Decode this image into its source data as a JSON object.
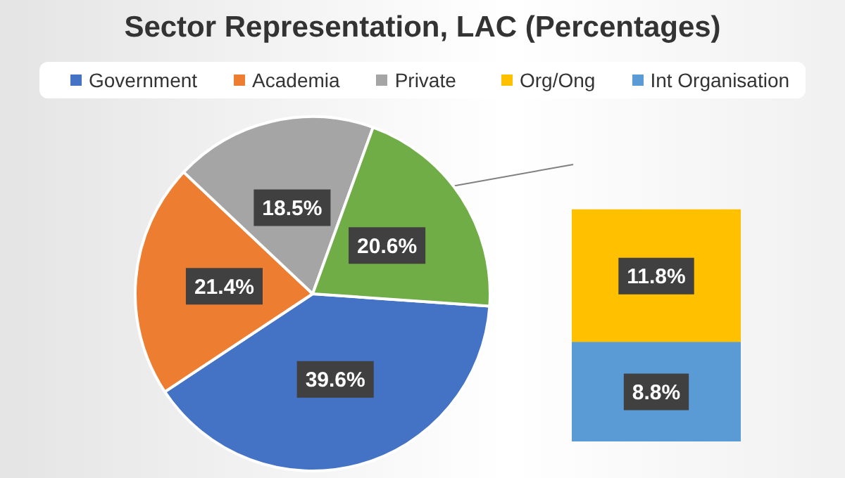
{
  "chart_data": [
    {
      "type": "pie",
      "title": "Sector Representation, LAC (Percentages)",
      "categories": [
        "Government",
        "Academia",
        "Private",
        null
      ],
      "values": [
        39.6,
        21.4,
        18.5,
        20.6
      ],
      "colors": [
        "#4472c4",
        "#ed7d31",
        "#a5a5a5",
        "#70ad47"
      ],
      "value_labels": [
        "39.6%",
        "21.4%",
        "18.5%",
        "20.6%"
      ],
      "legend": "top"
    },
    {
      "type": "bar",
      "stacked": true,
      "categories": [
        null
      ],
      "tick_labels": false,
      "legend": "top left",
      "series": [
        {
          "name": "Int Organisation",
          "color": "#5b9bd5",
          "values": [
            8.8
          ],
          "value_labels": [
            "8.8%"
          ]
        },
        {
          "name": "Org/Ong",
          "color": "#ffc000",
          "values": [
            11.8
          ],
          "value_labels": [
            "11.8%"
          ]
        }
      ]
    }
  ]
}
